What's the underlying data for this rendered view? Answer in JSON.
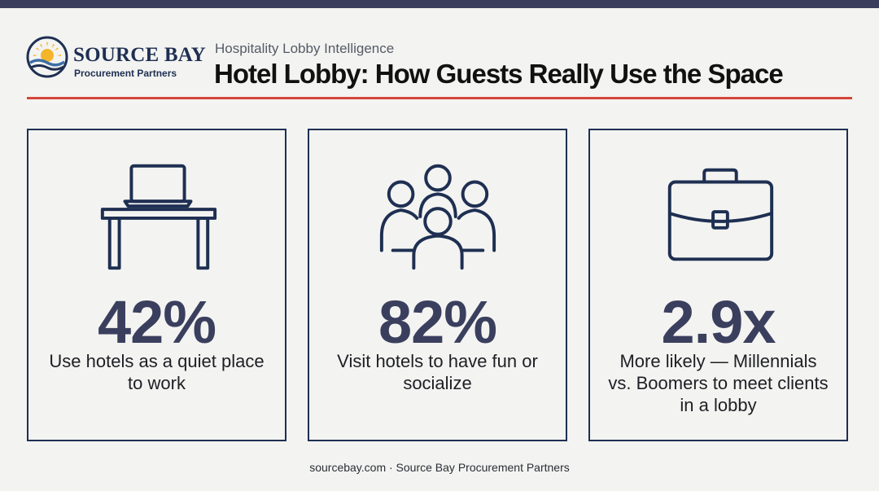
{
  "colors": {
    "background": "#f3f3f1",
    "top_bar": "#3a3e5c",
    "navy": "#1e2f52",
    "stat": "#3b3f5e",
    "accent_rule": "#d6453a",
    "sun_yellow": "#f4b52a",
    "wave_blue": "#3b6ea5"
  },
  "brand": {
    "name": "SOURCE BAY",
    "subtitle": "Procurement Partners"
  },
  "header": {
    "kicker": "Hospitality Lobby Intelligence",
    "title": "Hotel Lobby: How Guests Really Use the Space"
  },
  "cards": [
    {
      "icon": "laptop-desk-icon",
      "stat": "42%",
      "description": "Use hotels as a quiet place to work"
    },
    {
      "icon": "group-people-icon",
      "stat": "82%",
      "description": "Visit hotels to have fun or socialize"
    },
    {
      "icon": "briefcase-icon",
      "stat": "2.9x",
      "description": "More likely — Millennials vs. Boomers to meet clients in a lobby"
    }
  ],
  "footer": {
    "text": "sourcebay.com · Source Bay Procurement Partners"
  }
}
